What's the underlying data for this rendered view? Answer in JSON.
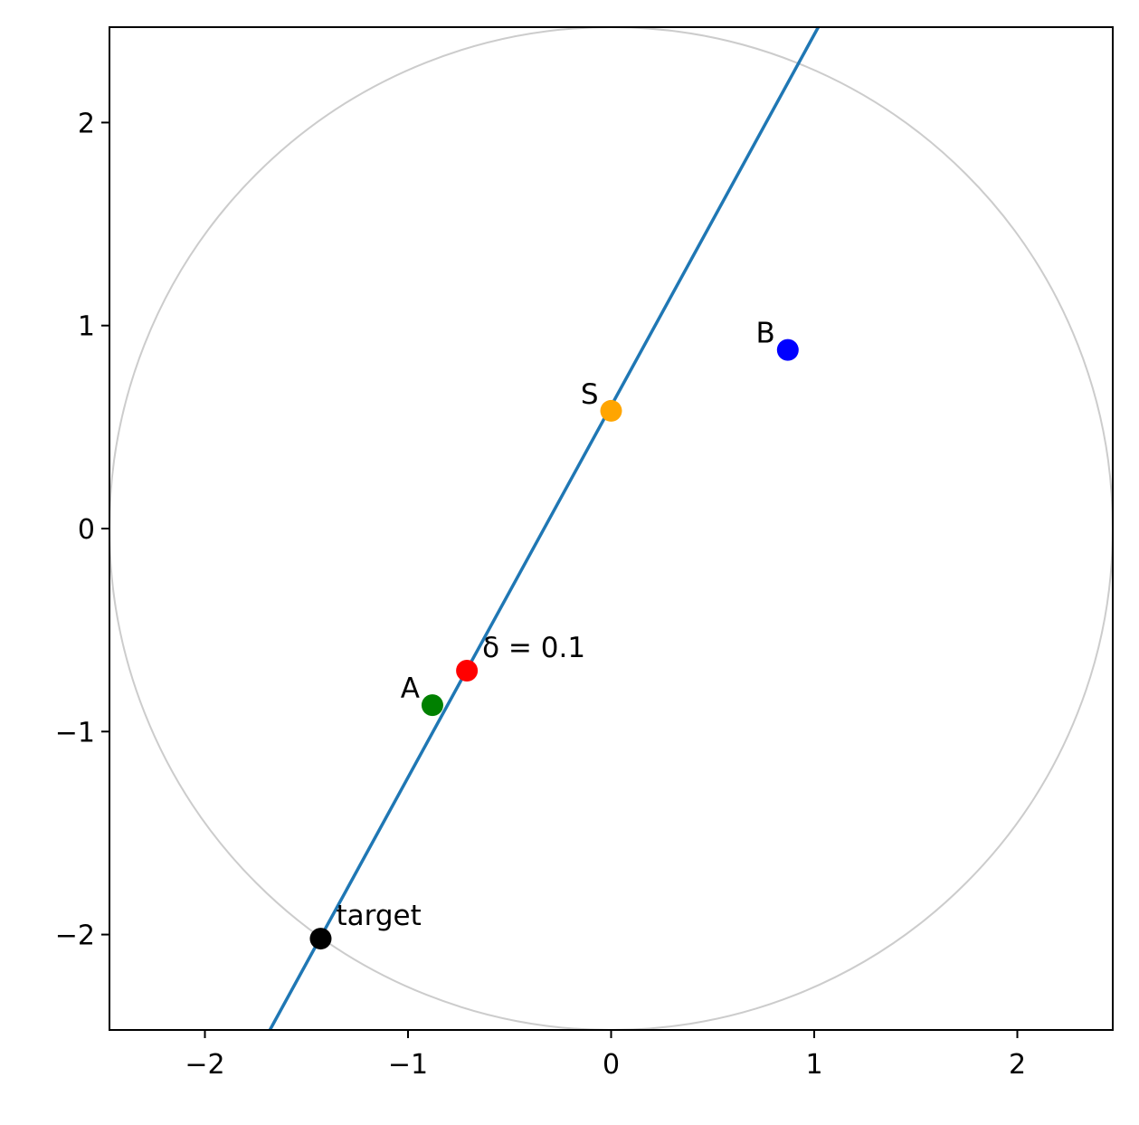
{
  "chart_data": {
    "type": "scatter",
    "xlim": [
      -2.47,
      2.47
    ],
    "ylim": [
      -2.47,
      2.47
    ],
    "aspect": "equal",
    "grid": false,
    "x_ticks": [
      {
        "value": -2,
        "label": "−2"
      },
      {
        "value": -1,
        "label": "−1"
      },
      {
        "value": 0,
        "label": "0"
      },
      {
        "value": 1,
        "label": "1"
      },
      {
        "value": 2,
        "label": "2"
      }
    ],
    "y_ticks": [
      {
        "value": -2,
        "label": "−2"
      },
      {
        "value": -1,
        "label": "−1"
      },
      {
        "value": 0,
        "label": "0"
      },
      {
        "value": 1,
        "label": "1"
      },
      {
        "value": 2,
        "label": "2"
      }
    ],
    "circle": {
      "center": [
        0,
        0
      ],
      "radius": 2.47,
      "color": "#cccccc"
    },
    "line": {
      "color": "#1f77b4",
      "points": [
        [
          -1.68,
          -2.47
        ],
        [
          1.02,
          2.47
        ]
      ]
    },
    "points": [
      {
        "id": "S",
        "label": "S",
        "x": 0.0,
        "y": 0.58,
        "color": "#ffa500",
        "label_anchor": "upper-left"
      },
      {
        "id": "B",
        "label": "B",
        "x": 0.87,
        "y": 0.88,
        "color": "#0000ff",
        "label_anchor": "upper-left"
      },
      {
        "id": "A",
        "label": "A",
        "x": -0.88,
        "y": -0.87,
        "color": "#008000",
        "label_anchor": "upper-left"
      },
      {
        "id": "delta",
        "label": "δ = 0.1",
        "x": -0.71,
        "y": -0.7,
        "color": "#ff0000",
        "label_anchor": "upper-right"
      },
      {
        "id": "target",
        "label": "target",
        "x": -1.43,
        "y": -2.02,
        "color": "#000000",
        "label_anchor": "upper-right"
      }
    ]
  }
}
